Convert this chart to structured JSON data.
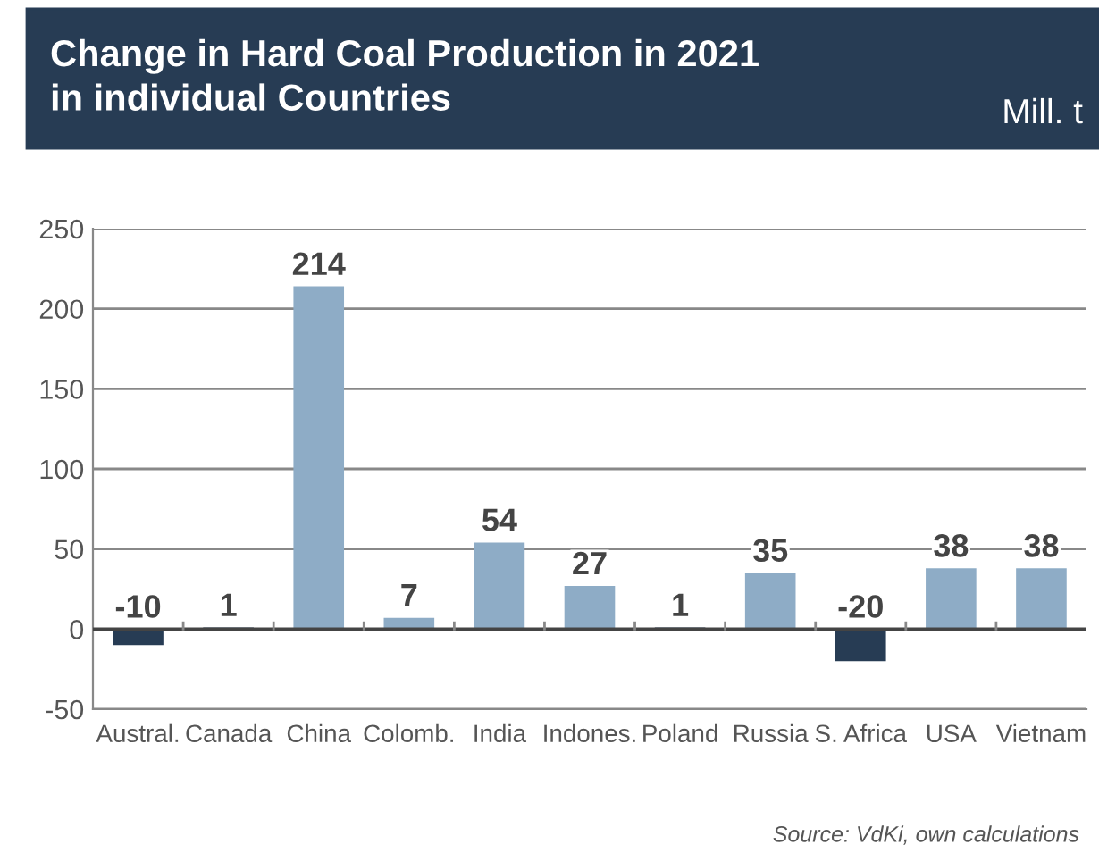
{
  "chart_data": {
    "type": "bar",
    "title": "Change in Hard Coal Production in 2021\nin individual Countries",
    "ylabel": "Mill. t",
    "categories": [
      "Austral.",
      "Canada",
      "China",
      "Colomb.",
      "India",
      "Indones.",
      "Poland",
      "Russia",
      "S. Africa",
      "USA",
      "Vietnam"
    ],
    "values": [
      -10,
      1,
      214,
      7,
      54,
      27,
      1,
      35,
      -20,
      38,
      38
    ],
    "value_labels": [
      "-10",
      "1",
      "214",
      "7",
      "54",
      "27",
      "1",
      "35",
      "-20",
      "38",
      "38"
    ],
    "colors": [
      "#273c54",
      "#273c54",
      "#8eacc6",
      "#8eacc6",
      "#8eacc6",
      "#8eacc6",
      "#273c54",
      "#8eacc6",
      "#273c54",
      "#8eacc6",
      "#8eacc6"
    ],
    "ylim": [
      -50,
      250
    ],
    "yticks": [
      -50,
      0,
      50,
      100,
      150,
      200,
      250
    ],
    "grid": "y",
    "annotations": [
      "Source: VdKi, own calculations"
    ]
  }
}
